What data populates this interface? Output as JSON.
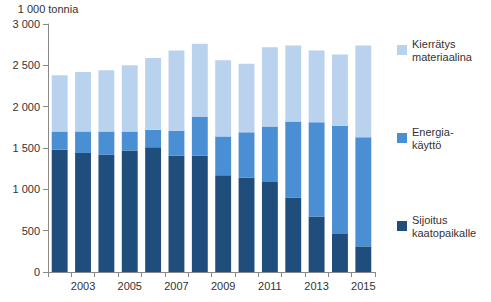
{
  "chart_data": {
    "type": "bar",
    "stacked": true,
    "ylabel": "1 000 tonnia",
    "categories": [
      null,
      "2003",
      null,
      "2005",
      null,
      "2007",
      null,
      "2009",
      null,
      "2011",
      null,
      "2013",
      null,
      "2015"
    ],
    "series": [
      {
        "name": "Sijoitus\nkaatopaikalle",
        "color": "#1f4e7d",
        "values": [
          1480,
          1440,
          1420,
          1470,
          1510,
          1410,
          1410,
          1170,
          1140,
          1090,
          900,
          670,
          460,
          310
        ]
      },
      {
        "name": "Energia-\nkäyttö",
        "color": "#4a8ed4",
        "values": [
          220,
          260,
          280,
          230,
          210,
          300,
          470,
          470,
          550,
          670,
          920,
          1140,
          1310,
          1320
        ]
      },
      {
        "name": "Kierrätys\nmateriaalina",
        "color": "#b9d2ee",
        "values": [
          680,
          720,
          740,
          800,
          870,
          970,
          880,
          920,
          830,
          960,
          920,
          870,
          860,
          1110
        ]
      }
    ],
    "ylim": [
      0,
      3000
    ],
    "yticks": [
      0,
      500,
      {
        "value": 1000,
        "label": "1 000"
      },
      {
        "value": 1500,
        "label": "1 500"
      },
      {
        "value": 2000,
        "label": "2 000"
      },
      {
        "value": 2500,
        "label": "2 500"
      },
      {
        "value": 3000,
        "label": "3 000"
      }
    ],
    "grid": false,
    "legend": "right"
  }
}
